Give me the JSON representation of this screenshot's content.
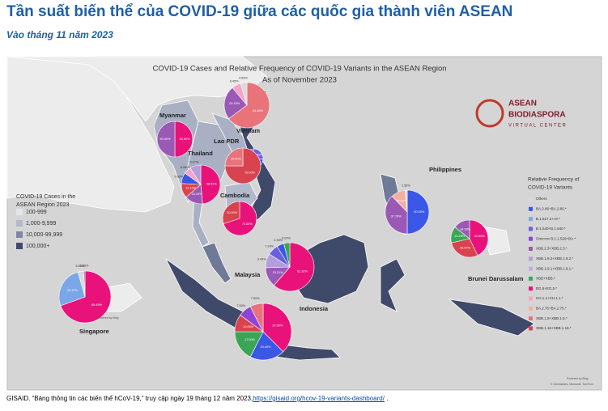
{
  "header": {
    "title": "Tần suất biến thể của COVID-19 giữa các quốc gia thành viên ASEAN",
    "subtitle": "Vào tháng 11 năm 2023"
  },
  "map": {
    "title": "COVID-19 Cases and Relative Frequency of COVID-19 Variants in the ASEAN Region",
    "date": "As of November 2023",
    "logo": [
      "ASEAN",
      "BIODIASPORA",
      "VIRTUAL CENTER"
    ],
    "countries": [
      "Myanmar",
      "Vietnam",
      "Lao PDR",
      "Thailand",
      "Cambodia",
      "Philippines",
      "Brunei Darussalam",
      "Malaysia",
      "Singapore",
      "Indonesia"
    ],
    "cases_legend": {
      "title": [
        "COVID-19 Cases in the",
        "ASEAN Region 2023"
      ],
      "items": [
        {
          "label": "100-999",
          "color": "#e3e5ee"
        },
        {
          "label": "1,000-9,999",
          "color": "#b3b9cc"
        },
        {
          "label": "10,000-99,999",
          "color": "#7e88a6"
        },
        {
          "label": "100,000+",
          "color": "#3e4a6c"
        }
      ]
    },
    "variant_legend": {
      "title": [
        "Relative Frequency of",
        "COVID-19 Variants"
      ],
      "items": [
        {
          "label": "Others",
          "color": "#d9d9d9"
        },
        {
          "label": "BA.2.86+BA.2.86.*",
          "color": "#3b57e8"
        },
        {
          "label": "B.1.617.2+AY.*",
          "color": "#7ba6e8"
        },
        {
          "label": "B.1.640+B.1.640.*",
          "color": "#6a5fe0"
        },
        {
          "label": "Omicron B.1.1.529+BA.*",
          "color": "#8e44d6"
        },
        {
          "label": "XBB.2.3+XBB.2.3.*",
          "color": "#9b59b6"
        },
        {
          "label": "XBB.1.9.2+XBB.1.9.2.*",
          "color": "#b39ddb"
        },
        {
          "label": "XBB.1.9.1+XBB.1.9.1.*",
          "color": "#c9a8e0"
        },
        {
          "label": "XBB+XBB.*",
          "color": "#3aa655"
        },
        {
          "label": "EG.5+EG.5.*",
          "color": "#e8127a"
        },
        {
          "label": "CH.1.1+CH.1.1.*",
          "color": "#f5a3c7"
        },
        {
          "label": "BA.2.75+BA.2.75.*",
          "color": "#f2b0a0"
        },
        {
          "label": "XBB.1.5+XBB.1.5.*",
          "color": "#e8737a"
        },
        {
          "label": "XBB.1.16+XBB.1.16.*",
          "color": "#d9434f"
        }
      ]
    },
    "pies": [
      {
        "slices": [
          {
            "value": 50,
            "label": "50.00%",
            "variant": 9
          },
          {
            "value": 50,
            "label": "50.00%",
            "variant": 5
          }
        ]
      },
      {
        "slices": [
          {
            "value": 64.84,
            "label": "64.84%",
            "variant": 12
          },
          {
            "value": 24.18,
            "label": "24.18%",
            "variant": 5
          },
          {
            "value": 6.45,
            "label": "6.45%",
            "variant": 10
          },
          {
            "value": 4.53,
            "label": "4.53%",
            "variant": 0
          }
        ]
      },
      {
        "slices": [
          {
            "value": 26.4,
            "label": "26.40%",
            "variant": 3
          },
          {
            "value": 73.6,
            "label": "73.60%",
            "variant": 1
          }
        ]
      },
      {
        "slices": [
          {
            "value": 75,
            "label": "75.00%",
            "variant": 13
          },
          {
            "value": 25,
            "label": "25.00%",
            "variant": 12
          }
        ]
      },
      {
        "slices": [
          {
            "value": 48.51,
            "label": "48.51%",
            "variant": 9
          },
          {
            "value": 15.15,
            "label": "15.15%",
            "variant": 5
          },
          {
            "value": 12.12,
            "label": "12.12%",
            "variant": 13
          },
          {
            "value": 9.09,
            "label": "9.09%",
            "variant": 1
          },
          {
            "value": 6.06,
            "label": "6.06%",
            "variant": 10
          },
          {
            "value": 9.07,
            "label": "9.07%",
            "variant": 6
          }
        ]
      },
      {
        "slices": [
          {
            "value": 70,
            "label": "70.00%",
            "variant": 9
          },
          {
            "value": 30,
            "label": "30.00%",
            "variant": 13
          }
        ]
      },
      {
        "slices": [
          {
            "value": 50,
            "label": "50.00%",
            "variant": 1
          },
          {
            "value": 37.78,
            "label": "37.78%",
            "variant": 5
          },
          {
            "value": 10.67,
            "label": "10.67%",
            "variant": 11
          },
          {
            "value": 1.55,
            "label": "1.55%",
            "variant": 0
          }
        ]
      },
      {
        "slices": [
          {
            "value": 42.86,
            "label": "42.86%",
            "variant": 9
          },
          {
            "value": 28.57,
            "label": "28.57%",
            "variant": 13
          },
          {
            "value": 14.29,
            "label": "14.29%",
            "variant": 8
          },
          {
            "value": 14.28,
            "label": "14.28%",
            "variant": 5
          }
        ]
      },
      {
        "slices": [
          {
            "value": 61.32,
            "label": "61.32%",
            "variant": 9
          },
          {
            "value": 13.21,
            "label": "13.21%",
            "variant": 5
          },
          {
            "value": 9.43,
            "label": "9.43%",
            "variant": 6
          },
          {
            "value": 7.14,
            "label": "7.14%",
            "variant": 3
          },
          {
            "value": 4.9,
            "label": "4.90%",
            "variant": 1
          },
          {
            "value": 4,
            "label": "4.00%",
            "variant": 8
          }
        ]
      },
      {
        "slices": [
          {
            "value": 69.49,
            "label": "69.49%",
            "variant": 9
          },
          {
            "value": 26.13,
            "label": "26.13%",
            "variant": 2
          },
          {
            "value": 3.53,
            "label": "3.53%",
            "variant": 0
          },
          {
            "value": 0.85,
            "label": "0.85%",
            "variant": 5
          }
        ]
      },
      {
        "slices": [
          {
            "value": 37.5,
            "label": "37.50%",
            "variant": 9
          },
          {
            "value": 20,
            "label": "20.00%",
            "variant": 1
          },
          {
            "value": 17.5,
            "label": "17.50%",
            "variant": 8
          },
          {
            "value": 10,
            "label": "10.00%",
            "variant": 13
          },
          {
            "value": 7.5,
            "label": "7.50%",
            "variant": 4
          },
          {
            "value": 7.5,
            "label": "7.50%",
            "variant": 12
          }
        ]
      }
    ],
    "credits": [
      "Powered by Bing",
      "© GeoNames, Microsoft, TomTom"
    ]
  },
  "footer": {
    "text": "GISAID. “Bảng thông tin các biến thể hCoV-19,” truy cập ngày 19 tháng 12 năm 2023,",
    "link": "https://gisaid.org/hcov-19-variants-dashboard/",
    "end": " ."
  }
}
